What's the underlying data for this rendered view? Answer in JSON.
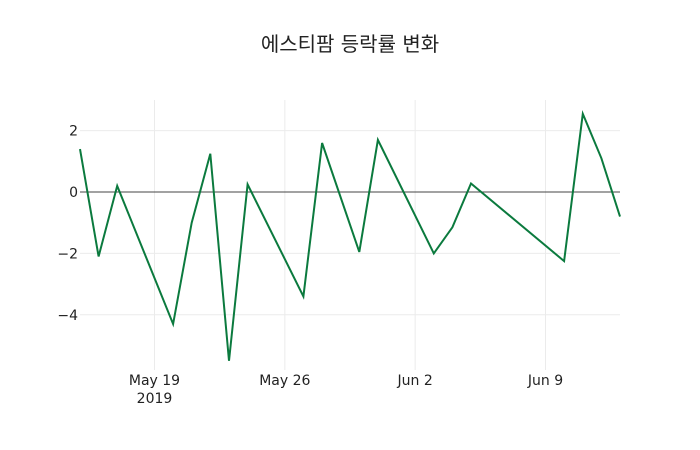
{
  "chart_data": {
    "type": "line",
    "title": "에스티팜 등락률 변화",
    "xlabel": "",
    "ylabel": "",
    "x": [
      "2019-05-15",
      "2019-05-16",
      "2019-05-17",
      "2019-05-20",
      "2019-05-21",
      "2019-05-22",
      "2019-05-23",
      "2019-05-24",
      "2019-05-27",
      "2019-05-28",
      "2019-05-30",
      "2019-05-31",
      "2019-06-03",
      "2019-06-04",
      "2019-06-05",
      "2019-06-10",
      "2019-06-11",
      "2019-06-12",
      "2019-06-13"
    ],
    "series": [
      {
        "name": "등락률",
        "color": "#0b7a3e",
        "values": [
          1.4,
          -2.1,
          0.2,
          -4.3,
          -1.0,
          1.25,
          -5.5,
          0.25,
          -3.4,
          1.6,
          -1.95,
          1.7,
          -2.0,
          -1.15,
          0.28,
          -2.25,
          2.55,
          1.1,
          -0.8
        ]
      }
    ],
    "x_ticks": [
      {
        "date": "2019-05-19",
        "label": "May 19",
        "sublabel": "2019"
      },
      {
        "date": "2019-05-26",
        "label": "May 26",
        "sublabel": ""
      },
      {
        "date": "2019-06-02",
        "label": "Jun 2",
        "sublabel": ""
      },
      {
        "date": "2019-06-09",
        "label": "Jun 9",
        "sublabel": ""
      }
    ],
    "y_ticks": [
      2,
      0,
      -2,
      -4
    ],
    "y_tick_labels": [
      "2",
      "0",
      "−2",
      "−4"
    ],
    "xlim": [
      "2019-05-15",
      "2019-06-13"
    ],
    "ylim": [
      -5.8,
      3.0
    ],
    "grid": true,
    "zero_line": true,
    "legend": false
  }
}
